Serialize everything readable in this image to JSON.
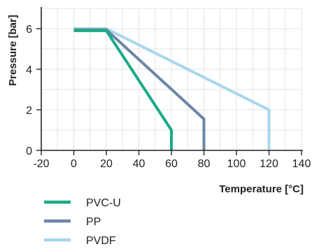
{
  "chart_data": {
    "type": "line",
    "xlabel": "Temperature [°C]",
    "ylabel": "Pressure [bar]",
    "xlim": [
      -20,
      140
    ],
    "ylim": [
      0,
      7
    ],
    "x_ticks": [
      -20,
      0,
      20,
      40,
      60,
      80,
      100,
      120,
      140
    ],
    "y_ticks": [
      0,
      2,
      4,
      6
    ],
    "grid": true,
    "legend_position": "bottom-left",
    "series": [
      {
        "name": "PVC-U",
        "color": "#1aab87",
        "points": [
          [
            0,
            5.9
          ],
          [
            20,
            5.9
          ],
          [
            60,
            1.0
          ],
          [
            60,
            0
          ]
        ]
      },
      {
        "name": "PP",
        "color": "#6b86a6",
        "points": [
          [
            0,
            5.95
          ],
          [
            20,
            5.95
          ],
          [
            80,
            1.55
          ],
          [
            80,
            0
          ]
        ]
      },
      {
        "name": "PVDF",
        "color": "#a8d6ea",
        "points": [
          [
            0,
            6.0
          ],
          [
            20,
            6.0
          ],
          [
            120,
            2.0
          ],
          [
            120,
            0
          ]
        ]
      }
    ]
  }
}
